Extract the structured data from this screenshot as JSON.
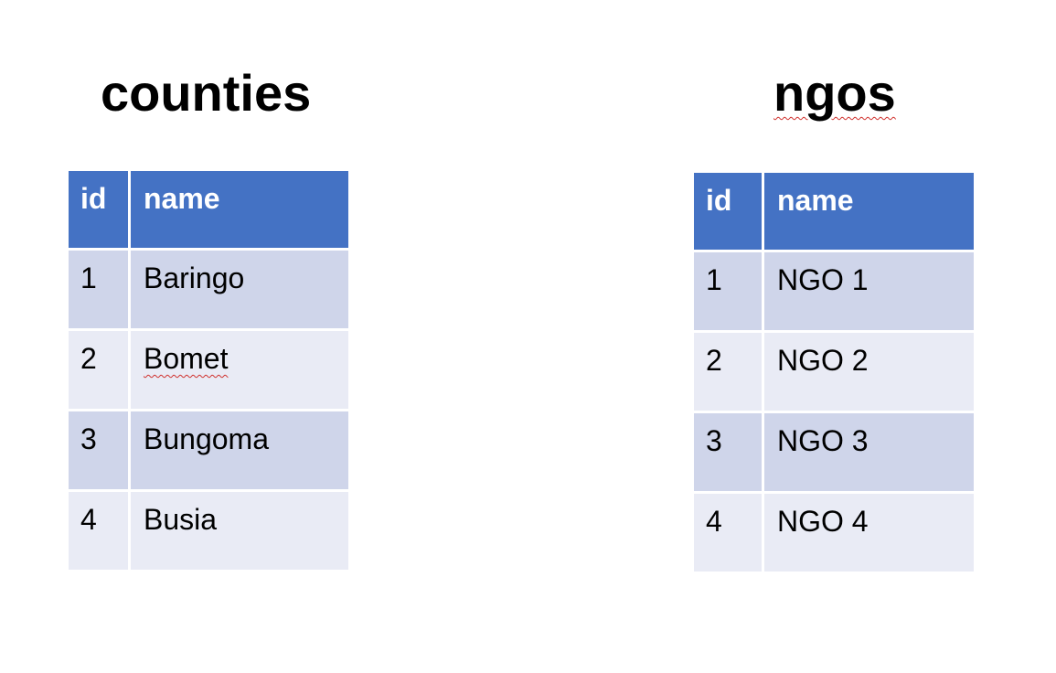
{
  "tables": [
    {
      "title": "counties",
      "headers": {
        "id": "id",
        "name": "name"
      },
      "rows": [
        {
          "id": "1",
          "name": "Baringo"
        },
        {
          "id": "2",
          "name": "Bomet"
        },
        {
          "id": "3",
          "name": "Bungoma"
        },
        {
          "id": "4",
          "name": "Busia"
        }
      ]
    },
    {
      "title": "ngos",
      "headers": {
        "id": "id",
        "name": "name"
      },
      "rows": [
        {
          "id": "1",
          "name": "NGO 1"
        },
        {
          "id": "2",
          "name": "NGO 2"
        },
        {
          "id": "3",
          "name": "NGO 3"
        },
        {
          "id": "4",
          "name": "NGO 4"
        }
      ]
    }
  ],
  "colors": {
    "header_fill": "#4472c4",
    "row_fill_odd": "#cfd5ea",
    "row_fill_even": "#e9ebf5",
    "spellcheck_underline": "#d0312d"
  }
}
